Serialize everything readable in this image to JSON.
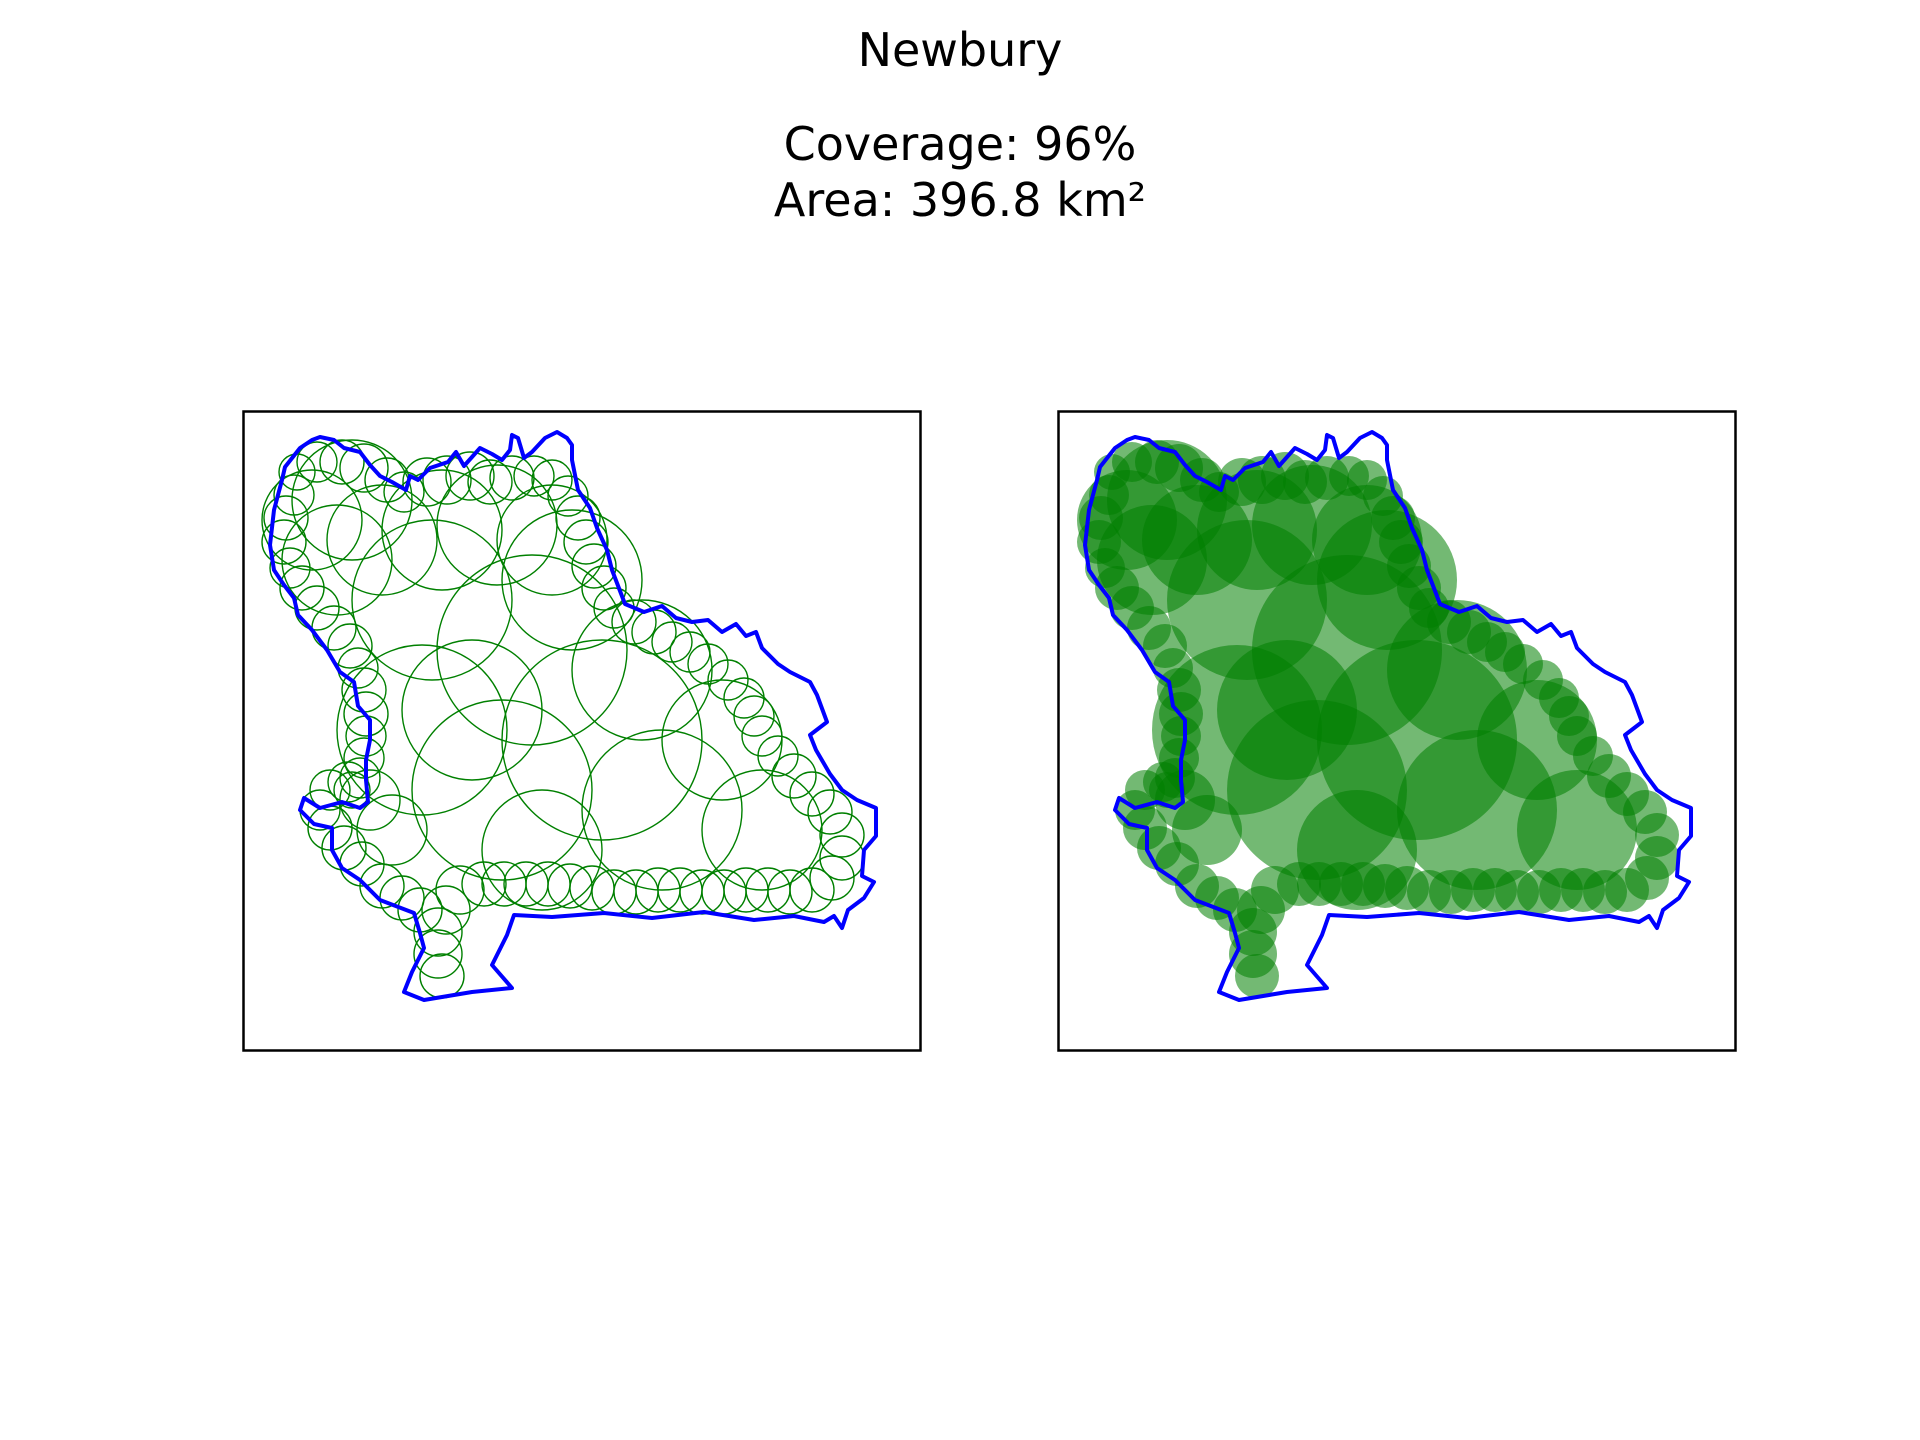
{
  "figure": {
    "title": "Newbury",
    "coverage_text": "Coverage: 96%",
    "area_text": "Area: 396.8 km²"
  },
  "colors": {
    "boundary": "#0000ff",
    "circle": "#008000",
    "frame": "#000000",
    "background": "#ffffff"
  },
  "panels": [
    {
      "name": "circle-outline-panel",
      "style": "outline"
    },
    {
      "name": "circle-filled-panel",
      "style": "filled"
    }
  ]
}
